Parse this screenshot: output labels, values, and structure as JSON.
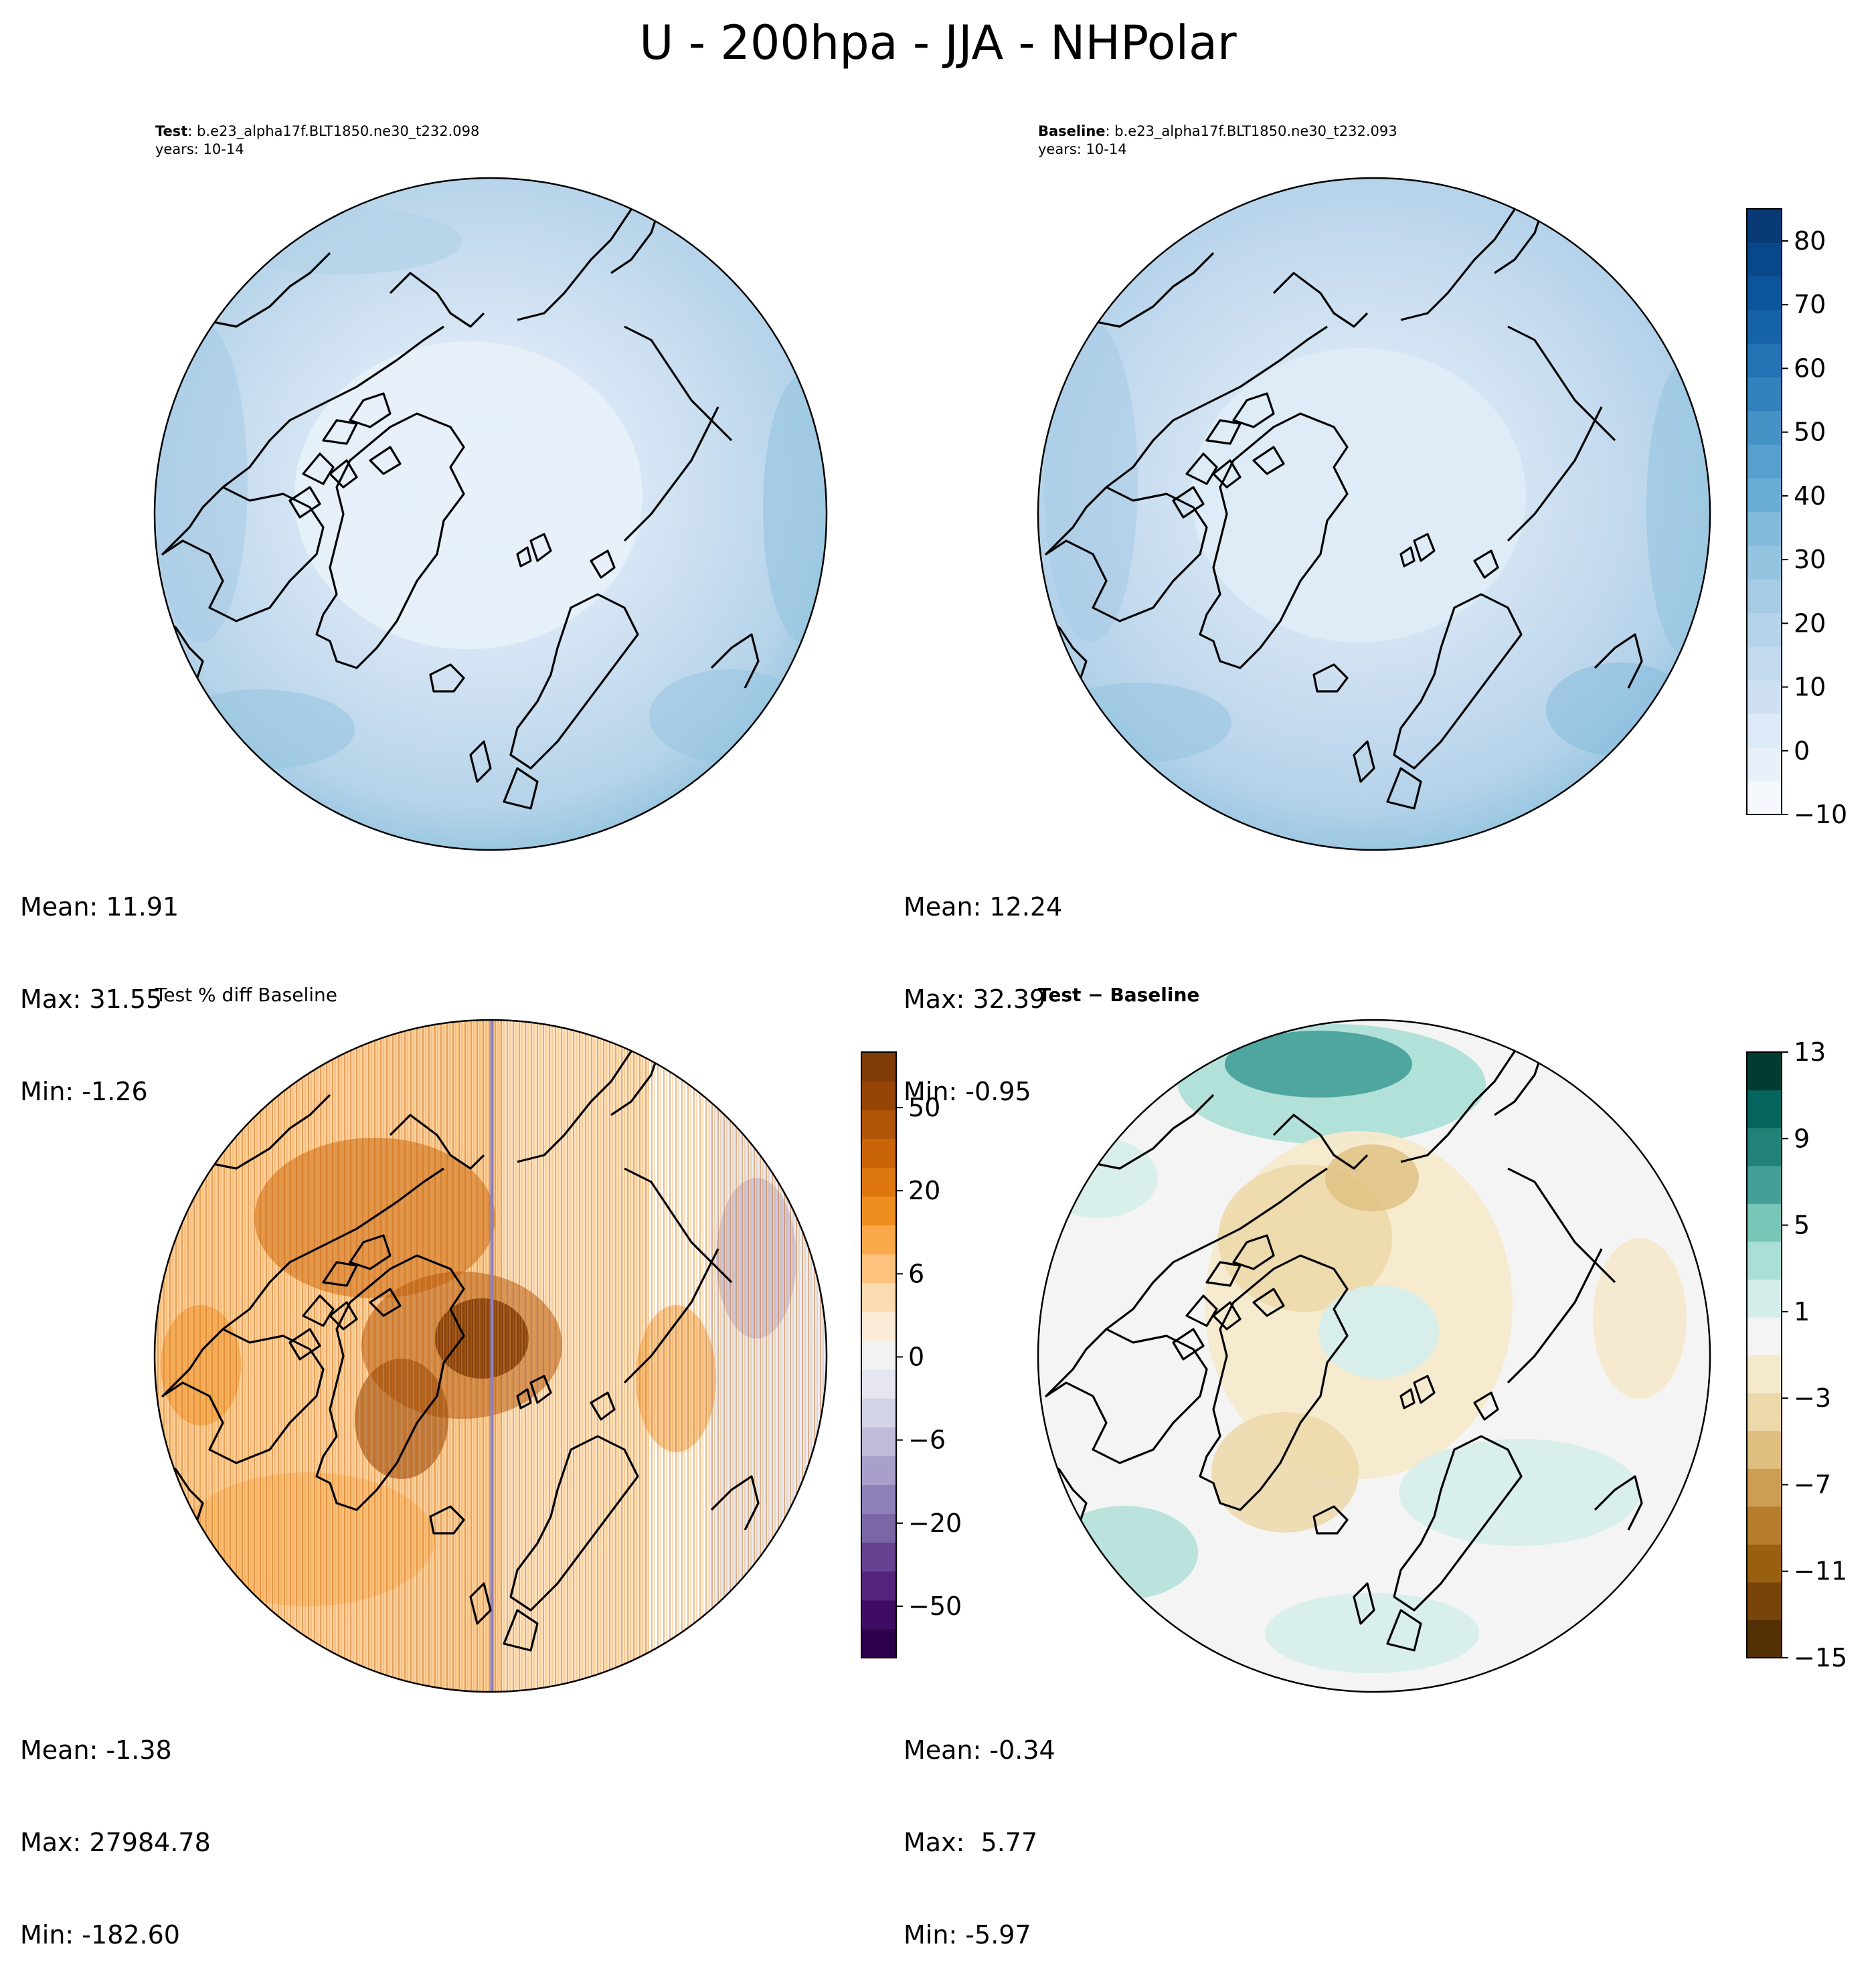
{
  "title": "U - 200hpa - JJA - NHPolar",
  "panels": {
    "test": {
      "label_bold": "Test",
      "label_rest": ": b.e23_alpha17f.BLT1850.ne30_t232.098",
      "years": "years: 10-14",
      "stats": {
        "mean": "Mean: 11.91",
        "max": "Max: 31.55",
        "min": "Min: -1.26"
      }
    },
    "baseline": {
      "label_bold": "Baseline",
      "label_rest": ": b.e23_alpha17f.BLT1850.ne30_t232.093",
      "years": "years: 10-14",
      "stats": {
        "mean": "Mean: 12.24",
        "max": "Max: 32.39",
        "min": "Min: -0.95"
      }
    },
    "pctdiff": {
      "label": "Test % diff Baseline",
      "stats": {
        "mean": "Mean: -1.38",
        "max": "Max: 27984.78",
        "min": "Min: -182.60"
      }
    },
    "diff": {
      "label": "Test − Baseline",
      "stats": {
        "mean": "Mean: -0.34",
        "max": "Max:  5.77",
        "min": "Min: -5.97"
      }
    }
  },
  "colorbars": {
    "abs": {
      "ticks": [
        "80",
        "70",
        "60",
        "50",
        "40",
        "30",
        "20",
        "10",
        "0",
        "−10"
      ],
      "colors": [
        "#f5f9fe",
        "#e8f1fa",
        "#dce9f6",
        "#cee0f2",
        "#c2d9ee",
        "#b5d3e9",
        "#a6cbe4",
        "#94c4df",
        "#81badb",
        "#6aaed6",
        "#57a0ce",
        "#4592c6",
        "#3282be",
        "#2372b4",
        "#1763a8",
        "#0c559c",
        "#08478a",
        "#083a75"
      ]
    },
    "pct": {
      "ticks": [
        "50",
        "20",
        "6",
        "0",
        "−6",
        "−20",
        "−50"
      ],
      "colors": [
        "#2d004b",
        "#3f0c63",
        "#52247b",
        "#65418f",
        "#7a68a6",
        "#8e80b9",
        "#a89fcb",
        "#bebbdb",
        "#d3d4e8",
        "#e6e6f0",
        "#f2f1f4",
        "#faebd6",
        "#fddbb0",
        "#fdc27d",
        "#f9a949",
        "#ee8e1f",
        "#de760f",
        "#c96408",
        "#b05407",
        "#954406",
        "#7f3b08"
      ]
    },
    "diff": {
      "ticks": [
        "13",
        "9",
        "5",
        "1",
        "−3",
        "−7",
        "−11",
        "−15"
      ],
      "colors": [
        "#543005",
        "#77450b",
        "#99600f",
        "#b57d2c",
        "#cc9e53",
        "#dfbf7f",
        "#ecd8a8",
        "#f5e9cc",
        "#f4f4f4",
        "#d6eeeb",
        "#aadfd6",
        "#77c6b8",
        "#44a097",
        "#218378",
        "#04665c",
        "#003c30"
      ]
    }
  },
  "icons": [
    "coastline-outline-icon"
  ]
}
